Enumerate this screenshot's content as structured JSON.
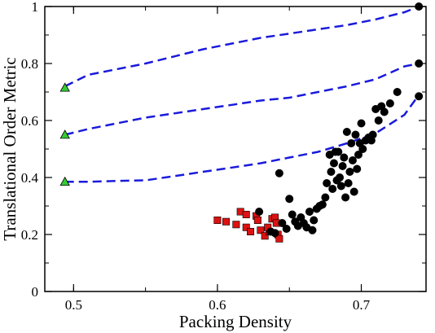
{
  "chart_data": {
    "type": "scatter",
    "xlabel": "Packing Density",
    "ylabel": "Translational Order Metric",
    "xlim": [
      0.48,
      0.745
    ],
    "ylim": [
      0,
      1
    ],
    "x_ticks": [
      0.5,
      0.6,
      0.7
    ],
    "x_tick_labels": [
      "0.5",
      "0.6",
      "0.7"
    ],
    "y_ticks": [
      0,
      0.2,
      0.4,
      0.6,
      0.8,
      1
    ],
    "y_tick_labels": [
      "0",
      "0.2",
      "0.4",
      "0.6",
      "0.8",
      "1"
    ],
    "grid": false,
    "legend": "none",
    "colors": {
      "dashed_line": "#1a1adc",
      "triangle_fill": "#33cc33",
      "square_fill": "#dd1111",
      "circle_fill": "#000000"
    },
    "dashed_lines": [
      {
        "x": [
          0.494,
          0.51,
          0.53,
          0.55,
          0.57,
          0.59,
          0.61,
          0.63,
          0.65,
          0.67,
          0.69,
          0.71,
          0.73,
          0.74
        ],
        "y": [
          0.72,
          0.76,
          0.78,
          0.8,
          0.825,
          0.85,
          0.87,
          0.89,
          0.905,
          0.92,
          0.935,
          0.955,
          0.98,
          1.0
        ]
      },
      {
        "x": [
          0.494,
          0.51,
          0.53,
          0.55,
          0.57,
          0.59,
          0.61,
          0.63,
          0.65,
          0.67,
          0.69,
          0.71,
          0.73,
          0.74
        ],
        "y": [
          0.55,
          0.57,
          0.59,
          0.61,
          0.625,
          0.64,
          0.655,
          0.67,
          0.68,
          0.7,
          0.72,
          0.745,
          0.79,
          0.8
        ]
      },
      {
        "x": [
          0.494,
          0.51,
          0.53,
          0.55,
          0.57,
          0.59,
          0.61,
          0.63,
          0.65,
          0.67,
          0.69,
          0.71,
          0.73,
          0.74
        ],
        "y": [
          0.385,
          0.385,
          0.388,
          0.39,
          0.405,
          0.42,
          0.435,
          0.45,
          0.47,
          0.49,
          0.52,
          0.555,
          0.62,
          0.69
        ]
      }
    ],
    "triangles": [
      {
        "x": 0.494,
        "y": 0.715
      },
      {
        "x": 0.494,
        "y": 0.55
      },
      {
        "x": 0.494,
        "y": 0.385
      }
    ],
    "squares": [
      {
        "x": 0.6,
        "y": 0.25
      },
      {
        "x": 0.606,
        "y": 0.245
      },
      {
        "x": 0.613,
        "y": 0.235
      },
      {
        "x": 0.616,
        "y": 0.28
      },
      {
        "x": 0.62,
        "y": 0.27
      },
      {
        "x": 0.62,
        "y": 0.225
      },
      {
        "x": 0.623,
        "y": 0.21
      },
      {
        "x": 0.627,
        "y": 0.265
      },
      {
        "x": 0.628,
        "y": 0.25
      },
      {
        "x": 0.63,
        "y": 0.215
      },
      {
        "x": 0.633,
        "y": 0.195
      },
      {
        "x": 0.636,
        "y": 0.21
      },
      {
        "x": 0.638,
        "y": 0.255
      },
      {
        "x": 0.64,
        "y": 0.26
      },
      {
        "x": 0.641,
        "y": 0.24
      },
      {
        "x": 0.642,
        "y": 0.2
      },
      {
        "x": 0.643,
        "y": 0.185
      },
      {
        "x": 0.635,
        "y": 0.225
      }
    ],
    "circles": [
      {
        "x": 0.629,
        "y": 0.28
      },
      {
        "x": 0.637,
        "y": 0.21
      },
      {
        "x": 0.64,
        "y": 0.205
      },
      {
        "x": 0.643,
        "y": 0.415
      },
      {
        "x": 0.645,
        "y": 0.24
      },
      {
        "x": 0.648,
        "y": 0.22
      },
      {
        "x": 0.65,
        "y": 0.325
      },
      {
        "x": 0.652,
        "y": 0.27
      },
      {
        "x": 0.654,
        "y": 0.245
      },
      {
        "x": 0.656,
        "y": 0.23
      },
      {
        "x": 0.658,
        "y": 0.26
      },
      {
        "x": 0.66,
        "y": 0.24
      },
      {
        "x": 0.662,
        "y": 0.225
      },
      {
        "x": 0.664,
        "y": 0.28
      },
      {
        "x": 0.666,
        "y": 0.215
      },
      {
        "x": 0.667,
        "y": 0.25
      },
      {
        "x": 0.669,
        "y": 0.29
      },
      {
        "x": 0.671,
        "y": 0.3
      },
      {
        "x": 0.673,
        "y": 0.305
      },
      {
        "x": 0.675,
        "y": 0.33
      },
      {
        "x": 0.676,
        "y": 0.38
      },
      {
        "x": 0.678,
        "y": 0.48
      },
      {
        "x": 0.679,
        "y": 0.42
      },
      {
        "x": 0.68,
        "y": 0.36
      },
      {
        "x": 0.681,
        "y": 0.45
      },
      {
        "x": 0.682,
        "y": 0.49
      },
      {
        "x": 0.683,
        "y": 0.39
      },
      {
        "x": 0.684,
        "y": 0.49
      },
      {
        "x": 0.685,
        "y": 0.4
      },
      {
        "x": 0.686,
        "y": 0.37
      },
      {
        "x": 0.687,
        "y": 0.44
      },
      {
        "x": 0.688,
        "y": 0.47
      },
      {
        "x": 0.689,
        "y": 0.33
      },
      {
        "x": 0.69,
        "y": 0.56
      },
      {
        "x": 0.691,
        "y": 0.38
      },
      {
        "x": 0.692,
        "y": 0.42
      },
      {
        "x": 0.693,
        "y": 0.52
      },
      {
        "x": 0.694,
        "y": 0.46
      },
      {
        "x": 0.695,
        "y": 0.35
      },
      {
        "x": 0.696,
        "y": 0.55
      },
      {
        "x": 0.697,
        "y": 0.43
      },
      {
        "x": 0.698,
        "y": 0.48
      },
      {
        "x": 0.699,
        "y": 0.52
      },
      {
        "x": 0.7,
        "y": 0.59
      },
      {
        "x": 0.701,
        "y": 0.5
      },
      {
        "x": 0.703,
        "y": 0.53
      },
      {
        "x": 0.705,
        "y": 0.54
      },
      {
        "x": 0.707,
        "y": 0.53
      },
      {
        "x": 0.708,
        "y": 0.55
      },
      {
        "x": 0.71,
        "y": 0.64
      },
      {
        "x": 0.712,
        "y": 0.6
      },
      {
        "x": 0.714,
        "y": 0.65
      },
      {
        "x": 0.716,
        "y": 0.63
      },
      {
        "x": 0.72,
        "y": 0.66
      },
      {
        "x": 0.725,
        "y": 0.7
      },
      {
        "x": 0.74,
        "y": 0.685
      },
      {
        "x": 0.74,
        "y": 0.8
      },
      {
        "x": 0.74,
        "y": 1.0
      }
    ]
  }
}
